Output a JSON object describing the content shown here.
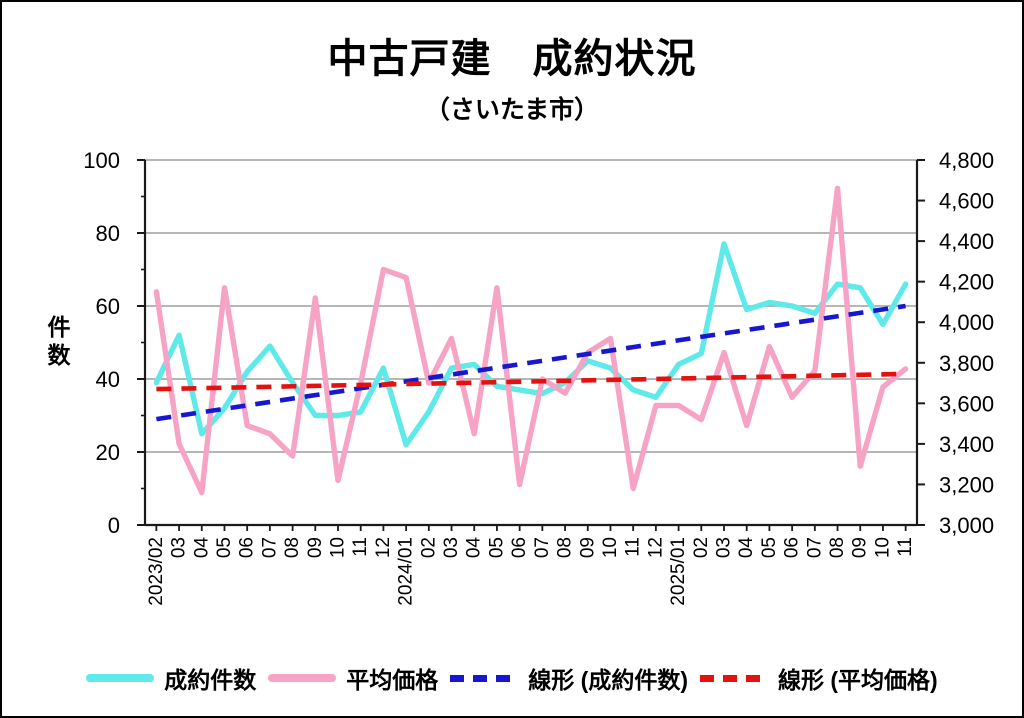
{
  "title": "中古戸建　成約状況",
  "subtitle": "（さいたま市）",
  "chart_data": {
    "type": "line",
    "title": "中古戸建 成約状況（さいたま市）",
    "grid": true,
    "legend_position": "bottom",
    "x_labels": [
      "2023/02",
      "03",
      "04",
      "05",
      "06",
      "07",
      "08",
      "09",
      "10",
      "11",
      "12",
      "2024/01",
      "02",
      "03",
      "04",
      "05",
      "06",
      "07",
      "08",
      "09",
      "10",
      "11",
      "12",
      "2025/01",
      "02",
      "03",
      "04",
      "05",
      "06",
      "07",
      "08",
      "09",
      "10",
      "11"
    ],
    "left_axis": {
      "label": "件数",
      "min": 0,
      "max": 100,
      "ticks": [
        "100",
        "80",
        "60",
        "40",
        "20",
        "0"
      ]
    },
    "right_axis": {
      "min": 3000,
      "max": 4800,
      "ticks": [
        "4,800",
        "4,600",
        "4,400",
        "4,200",
        "4,000",
        "3,800",
        "3,600",
        "3,400",
        "3,200",
        "3,000"
      ]
    },
    "series": [
      {
        "name": "成約件数",
        "axis": "left",
        "style": "solid",
        "color": "#5FE9E9",
        "values": [
          39,
          52,
          25,
          32,
          42,
          49,
          39,
          30,
          30,
          31,
          43,
          22,
          31,
          43,
          44,
          38,
          37,
          36,
          39,
          45,
          43,
          37,
          35,
          44,
          47,
          77,
          59,
          61,
          60,
          58,
          66,
          65,
          55,
          66
        ]
      },
      {
        "name": "平均価格",
        "axis": "right",
        "style": "solid",
        "color": "#F7A3C5",
        "values": [
          4150,
          3400,
          3160,
          4170,
          3490,
          3450,
          3340,
          4120,
          3220,
          3700,
          4260,
          4220,
          3700,
          3920,
          3450,
          4170,
          3200,
          3720,
          3650,
          3850,
          3920,
          3180,
          3590,
          3590,
          3520,
          3850,
          3490,
          3880,
          3630,
          3760,
          4660,
          3290,
          3680,
          3770
        ]
      },
      {
        "name": "線形 (成約件数)",
        "axis": "left",
        "style": "dashed",
        "color": "#1717CF",
        "trend": [
          29,
          60
        ]
      },
      {
        "name": "線形 (平均価格)",
        "axis": "right",
        "style": "dashed",
        "color": "#E51111",
        "trend": [
          3670,
          3745
        ]
      }
    ]
  }
}
